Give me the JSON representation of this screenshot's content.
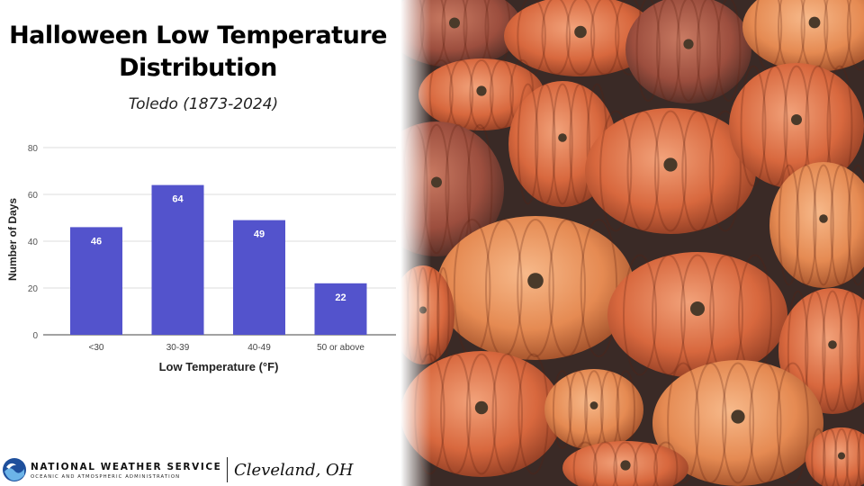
{
  "slide": {
    "title_line1": "Halloween Low Temperature",
    "title_line2": "Distribution",
    "subtitle": "Toledo (1873-2024)"
  },
  "footer": {
    "org_name": "NATIONAL WEATHER SERVICE",
    "org_sub": "OCEANIC AND ATMOSPHERIC ADMINISTRATION",
    "office": "Cleveland, OH",
    "logo_icon": "noaa-logo-icon"
  },
  "photo": {
    "subject": "pumpkins-photo"
  },
  "chart_data": {
    "type": "bar",
    "categories": [
      "<30",
      "30-39",
      "40-49",
      "50 or above"
    ],
    "values": [
      46,
      64,
      49,
      22
    ],
    "xlabel": "Low Temperature (°F)",
    "ylabel": "Number of Days",
    "ylim": [
      0,
      80
    ],
    "yticks": [
      0,
      20,
      40,
      60,
      80
    ],
    "grid": true,
    "legend": "none",
    "bar_color": "#5353cc",
    "data_labels": true
  }
}
